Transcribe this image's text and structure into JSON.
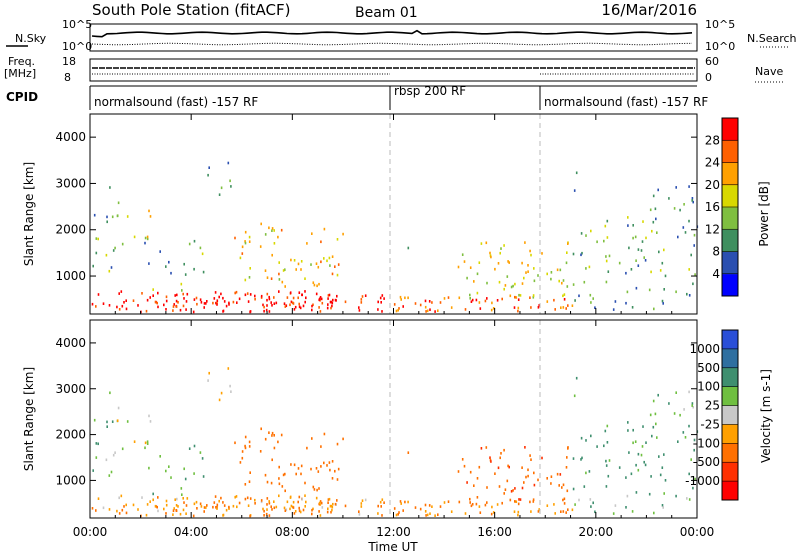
{
  "header": {
    "station": "South Pole Station (fitACF)",
    "beam": "Beam 01",
    "date": "16/Mar/2016"
  },
  "strips": {
    "nsky_label": "N.Sky",
    "nsearch_label": "N.Search",
    "freq_label_line1": "Freq.",
    "freq_label_line2": "[MHz]",
    "nave_label": "Nave",
    "cpid_label": "CPID",
    "nsky_ticks": [
      "10^5",
      "10^0"
    ],
    "nsearch_ticks": [
      "10^5",
      "10^0"
    ],
    "freq_ticks": [
      "18",
      "8"
    ],
    "nave_ticks": [
      "60",
      "0"
    ]
  },
  "cpid_segments": [
    {
      "label": "normalsound (fast) -157 RF",
      "start_hour": 0,
      "end_hour": 12
    },
    {
      "label": "rbsp 200 RF",
      "start_hour": 12,
      "end_hour": 18
    },
    {
      "label": "normalsound (fast) -157 RF",
      "start_hour": 18,
      "end_hour": 24
    }
  ],
  "colors": {
    "power_scale": [
      "#0000ff",
      "#2a4fb0",
      "#3f8f5f",
      "#7fbf40",
      "#d8d800",
      "#ffa000",
      "#ff6000",
      "#ff0000"
    ],
    "velocity_scale": [
      "#2a4fd8",
      "#2f6fa0",
      "#3f8f6f",
      "#6fbf40",
      "#c8c8c8",
      "#ffa000",
      "#ff7000",
      "#ff3000",
      "#ff0000"
    ],
    "dashed_line": "#bbbbbb"
  },
  "chart_data": [
    {
      "type": "heatmap",
      "name": "power",
      "ylabel": "Slant Range [km]",
      "xlabel": "Time UT",
      "xlim_hours": [
        0,
        24
      ],
      "ylim": [
        180,
        4500
      ],
      "x_tick_labels": [
        "00:00",
        "04:00",
        "08:00",
        "12:00",
        "16:00",
        "20:00",
        "00:00"
      ],
      "y_ticks": [
        1000,
        2000,
        3000,
        4000
      ],
      "colorbar": {
        "label": "Power [dB]",
        "range": [
          0,
          32
        ],
        "tick_labels": [
          "4",
          "8",
          "12",
          "16",
          "20",
          "24",
          "28"
        ]
      }
    },
    {
      "type": "heatmap",
      "name": "velocity",
      "ylabel": "Slant Range [km]",
      "xlabel": "Time UT",
      "xlim_hours": [
        0,
        24
      ],
      "ylim": [
        180,
        4500
      ],
      "x_tick_labels": [
        "00:00",
        "04:00",
        "08:00",
        "12:00",
        "16:00",
        "20:00",
        "00:00"
      ],
      "y_ticks": [
        1000,
        2000,
        3000,
        4000
      ],
      "colorbar": {
        "label": "Velocity [m s-1]",
        "tick_labels": [
          "1000",
          "500",
          "100",
          "25",
          "-25",
          "-100",
          "-500",
          "-1000"
        ]
      }
    }
  ],
  "scatter_regions": [
    {
      "t0": 0.0,
      "t1": 11.8,
      "r0": 250,
      "r1": 700,
      "density": 0.95,
      "p": 30,
      "v": -90
    },
    {
      "t0": 3.2,
      "t1": 9.8,
      "r0": 350,
      "r1": 600,
      "density": 1.0,
      "p": 30,
      "v": -110
    },
    {
      "t0": 12.0,
      "t1": 19.2,
      "r0": 250,
      "r1": 600,
      "density": 0.9,
      "p": 26,
      "v": -100
    },
    {
      "t0": 14.5,
      "t1": 19.0,
      "r0": 500,
      "r1": 1800,
      "density": 0.45,
      "p": 18,
      "v": -400
    },
    {
      "t0": 0.0,
      "t1": 1.2,
      "r0": 1000,
      "r1": 3000,
      "density": 0.25,
      "p": 12,
      "v": 80
    },
    {
      "t0": 1.0,
      "t1": 2.5,
      "r0": 1700,
      "r1": 2500,
      "density": 0.35,
      "p": 18,
      "v": 40
    },
    {
      "t0": 2.0,
      "t1": 4.5,
      "r0": 700,
      "r1": 1800,
      "density": 0.25,
      "p": 12,
      "v": 100
    },
    {
      "t0": 4.5,
      "t1": 6.0,
      "r0": 2700,
      "r1": 3500,
      "density": 0.25,
      "p": 10,
      "v": 0
    },
    {
      "t0": 5.5,
      "t1": 10.0,
      "r0": 800,
      "r1": 2200,
      "density": 0.4,
      "p": 20,
      "v": -300
    },
    {
      "t0": 12.3,
      "t1": 12.7,
      "r0": 1400,
      "r1": 1900,
      "density": 0.35,
      "p": 12,
      "v": -200
    },
    {
      "t0": 18.8,
      "t1": 19.3,
      "r0": 2800,
      "r1": 3500,
      "density": 0.3,
      "p": 8,
      "v": 100
    },
    {
      "t0": 19.0,
      "t1": 24.0,
      "r0": 300,
      "r1": 700,
      "density": 0.35,
      "p": 10,
      "v": 60
    },
    {
      "t0": 19.0,
      "t1": 24.0,
      "r0": 700,
      "r1": 2300,
      "density": 0.3,
      "p": 12,
      "v": 150
    },
    {
      "t0": 22.0,
      "t1": 24.0,
      "r0": 2000,
      "r1": 3000,
      "density": 0.3,
      "p": 10,
      "v": 60
    }
  ]
}
